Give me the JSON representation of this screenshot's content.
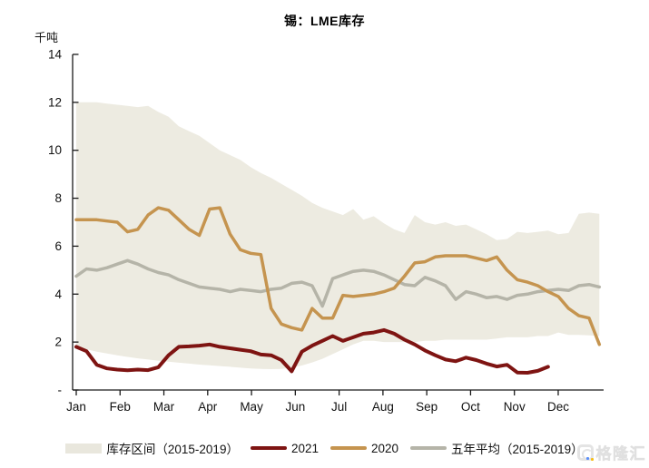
{
  "title": "锡：LME库存",
  "unit_label": "千吨",
  "watermark": {
    "text": "格隆汇"
  },
  "colors": {
    "band": "#edebe1",
    "line_2021": "#7e1412",
    "line_2020": "#c5944f",
    "line_avg5": "#b5b4a8",
    "axis": "#1a1a1a",
    "tick_text": "#111111"
  },
  "legend": [
    {
      "label": "库存区间（2015-2019）",
      "kind": "area",
      "color": "#e9e7dd"
    },
    {
      "label": "2021",
      "kind": "line",
      "color": "#7e1412"
    },
    {
      "label": "2020",
      "kind": "line",
      "color": "#c5944f"
    },
    {
      "label": "五年平均（2015-2019）",
      "kind": "line",
      "color": "#b5b4a8"
    }
  ],
  "chart_data": {
    "type": "line",
    "title": "锡：LME库存",
    "ylabel": "千吨",
    "x_unit": "week-of-year (Jan–Dec)",
    "x_axis": {
      "months": [
        "Jan",
        "Feb",
        "Mar",
        "Apr",
        "May",
        "Jun",
        "Jul",
        "Aug",
        "Sep",
        "Oct",
        "Nov",
        "Dec"
      ]
    },
    "y_axis": {
      "tick_labels": [
        "14",
        "12",
        "10",
        "8",
        "6",
        "4",
        "2",
        "-"
      ],
      "tick_values": [
        14,
        12,
        10,
        8,
        6,
        4,
        2,
        0
      ],
      "range": [
        0,
        14
      ],
      "grid": false
    },
    "legend_position": "bottom",
    "series": [
      {
        "name": "库存区间（2015-2019）",
        "kind": "band",
        "color": "#edebe1",
        "top": [
          12.0,
          12.0,
          12.0,
          11.95,
          11.9,
          11.85,
          11.8,
          11.85,
          11.6,
          11.4,
          11.0,
          10.8,
          10.6,
          10.3,
          10.0,
          9.8,
          9.6,
          9.3,
          9.05,
          8.85,
          8.6,
          8.35,
          8.1,
          7.8,
          7.6,
          7.45,
          7.3,
          7.55,
          7.1,
          7.25,
          6.95,
          6.7,
          6.55,
          7.3,
          7.0,
          6.9,
          7.0,
          6.85,
          6.9,
          6.7,
          6.5,
          6.25,
          6.3,
          6.6,
          6.55,
          6.6,
          6.65,
          6.5,
          6.55,
          7.35,
          7.4,
          7.35
        ],
        "bottom": [
          1.78,
          1.7,
          1.6,
          1.52,
          1.45,
          1.38,
          1.32,
          1.27,
          1.22,
          1.18,
          1.14,
          1.1,
          1.06,
          1.03,
          1.0,
          0.97,
          0.93,
          0.9,
          0.88,
          0.87,
          0.88,
          0.93,
          1.02,
          1.15,
          1.3,
          1.5,
          1.7,
          1.9,
          2.05,
          2.05,
          2.0,
          2.0,
          2.0,
          2.0,
          2.05,
          2.05,
          2.1,
          2.1,
          2.1,
          2.1,
          2.1,
          2.15,
          2.2,
          2.2,
          2.2,
          2.25,
          2.25,
          2.4,
          2.3,
          2.3,
          2.28,
          2.25
        ]
      },
      {
        "name": "五年平均（2015-2019）",
        "kind": "line",
        "color": "#b5b4a8",
        "values": [
          4.75,
          5.05,
          5.0,
          5.1,
          5.25,
          5.4,
          5.25,
          5.05,
          4.9,
          4.8,
          4.6,
          4.45,
          4.3,
          4.25,
          4.2,
          4.1,
          4.2,
          4.15,
          4.1,
          4.2,
          4.25,
          4.45,
          4.5,
          4.35,
          3.5,
          4.65,
          4.8,
          4.95,
          5.0,
          4.95,
          4.8,
          4.6,
          4.4,
          4.35,
          4.7,
          4.55,
          4.35,
          3.78,
          4.1,
          4.0,
          3.85,
          3.9,
          3.78,
          3.95,
          4.0,
          4.1,
          4.15,
          4.2,
          4.15,
          4.35,
          4.4,
          4.3
        ]
      },
      {
        "name": "2020",
        "kind": "line",
        "color": "#c5944f",
        "values": [
          7.1,
          7.1,
          7.1,
          7.05,
          7.0,
          6.6,
          6.7,
          7.3,
          7.6,
          7.5,
          7.1,
          6.7,
          6.45,
          7.55,
          7.6,
          6.5,
          5.85,
          5.7,
          5.65,
          3.4,
          2.75,
          2.6,
          2.5,
          3.4,
          3.0,
          3.0,
          3.95,
          3.9,
          3.95,
          4.0,
          4.1,
          4.25,
          4.75,
          5.3,
          5.35,
          5.55,
          5.6,
          5.6,
          5.6,
          5.5,
          5.4,
          5.55,
          5.0,
          4.6,
          4.5,
          4.35,
          4.1,
          3.9,
          3.4,
          3.1,
          3.0,
          1.9
        ]
      },
      {
        "name": "2021",
        "kind": "line",
        "color": "#7e1412",
        "values": [
          1.8,
          1.62,
          1.05,
          0.9,
          0.85,
          0.82,
          0.85,
          0.83,
          0.95,
          1.45,
          1.8,
          1.82,
          1.85,
          1.9,
          1.8,
          1.74,
          1.68,
          1.62,
          1.48,
          1.45,
          1.25,
          0.78,
          1.6,
          1.85,
          2.05,
          2.25,
          2.05,
          2.2,
          2.35,
          2.4,
          2.5,
          2.35,
          2.1,
          1.9,
          1.65,
          1.45,
          1.27,
          1.2,
          1.35,
          1.25,
          1.1,
          0.98,
          1.05,
          0.73,
          0.72,
          0.8,
          0.97
        ]
      }
    ]
  }
}
